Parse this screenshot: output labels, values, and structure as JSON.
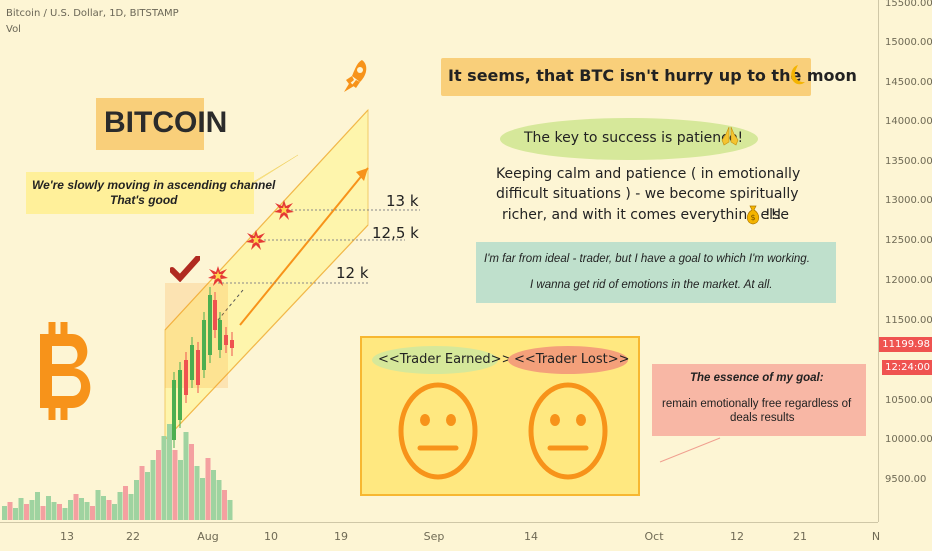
{
  "header": {
    "symbol": "Bitcoin / U.S. Dollar, 1D, BITSTAMP",
    "volume_label": "Vol"
  },
  "price_axis": {
    "ticks": [
      "15500.00",
      "15000.00",
      "14500.00",
      "14000.00",
      "13500.00",
      "13000.00",
      "12500.00",
      "12000.00",
      "11500.00",
      "10500.00",
      "10000.00",
      "9500.00"
    ],
    "current_price": "11199.98",
    "countdown": "12:24:00",
    "current_price_color": "#ef5350"
  },
  "time_axis": {
    "ticks": [
      "13",
      "22",
      "Aug",
      "10",
      "19",
      "Sep",
      "14",
      "Oct",
      "12",
      "21",
      "N"
    ]
  },
  "annotations": {
    "title_box": "It seems, that BTC isn't hurry up to the moon",
    "bitcoin_label": "BITCOIN",
    "channel_note_line1": "We're slowly moving in ascending channel",
    "channel_note_line2": "That's good",
    "patience": "The key to success is patience!",
    "calm_line1": "Keeping calm and patience ( in emotionally",
    "calm_line2": "difficult situations ) - we become spiritually",
    "calm_line3": "richer, and with it comes everything else",
    "calm_suffix": "!!!",
    "goal_line1": "I'm far from ideal - trader, but I have a goal to which I'm working.",
    "goal_line2": "I wanna get rid of emotions in the market. At all.",
    "trader_earned": "<<Trader Earned>>",
    "trader_lost": "<<Trader Lost>>",
    "essence_line1": "The essence of my goal:",
    "essence_line2": "remain emotionally free regardless of",
    "essence_line3": "deals results",
    "level_13k": "13 k",
    "level_125k": "12,5 k",
    "level_12k": "12 k"
  },
  "icons": [
    "rocket-icon",
    "moon-icon",
    "pray-icon",
    "money-bag-icon",
    "bitcoin-logo-icon",
    "checkmark-icon",
    "explosion-icon",
    "neutral-face-icon"
  ],
  "colors": {
    "up": "#4caf50",
    "down": "#ef5350",
    "accent_orange": "#f7931a",
    "background": "#fdf5d4"
  }
}
